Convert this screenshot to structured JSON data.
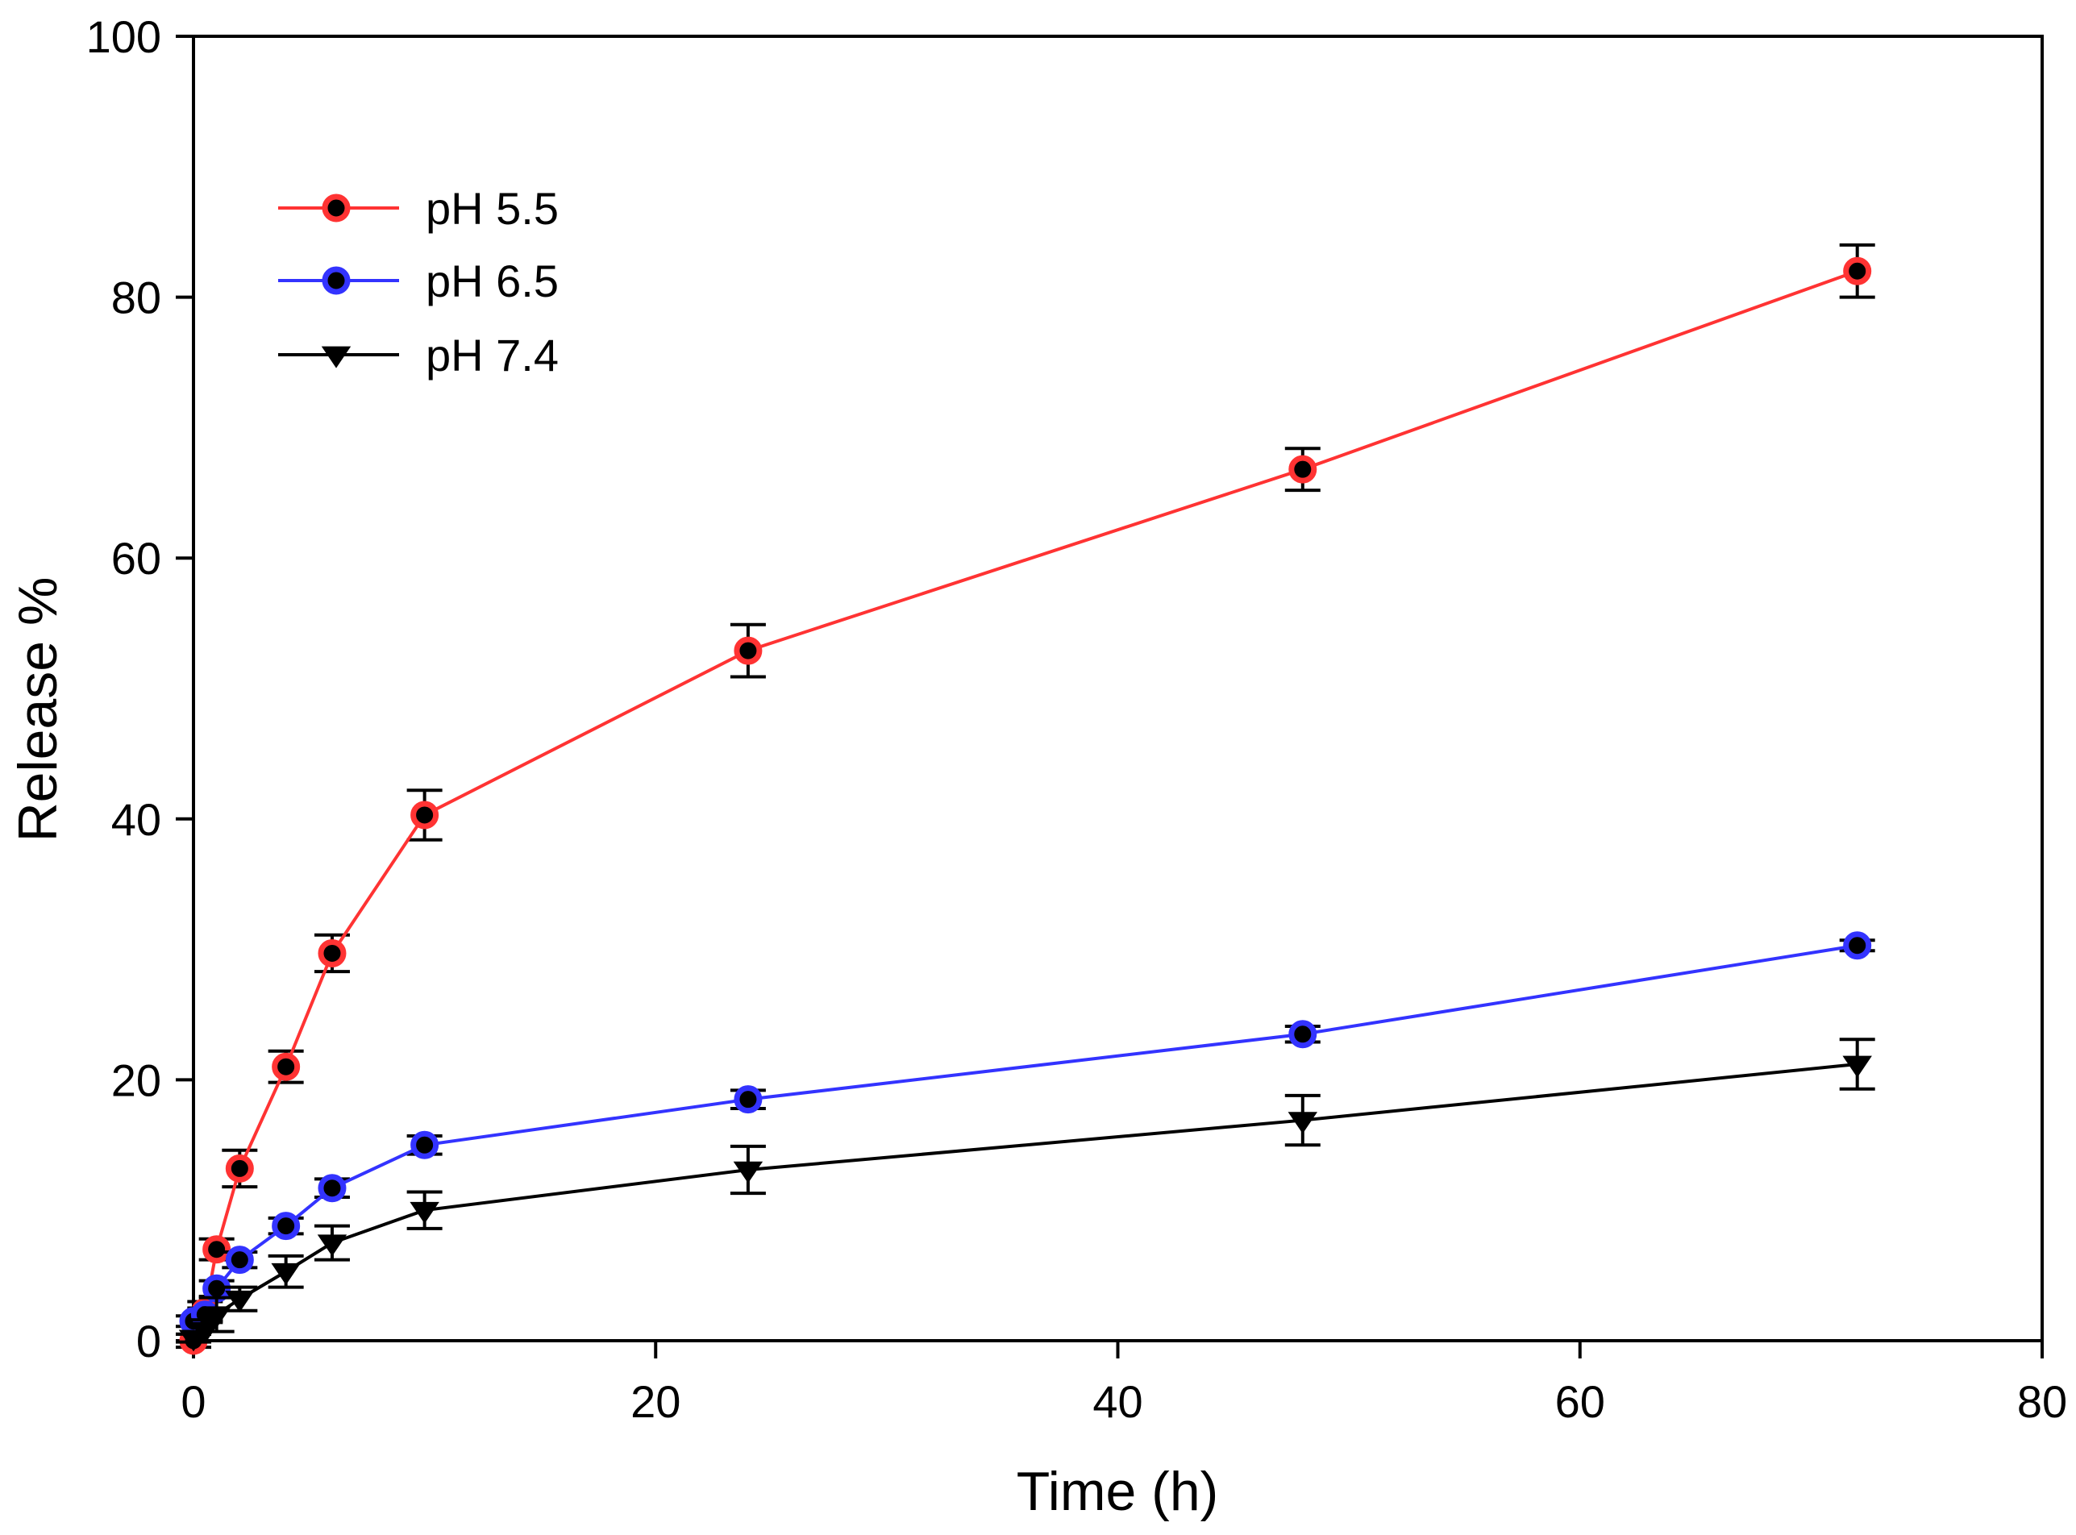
{
  "chart_data": {
    "type": "line",
    "title": "",
    "xlabel": "Time (h)",
    "ylabel": "Release %",
    "xlim": [
      0,
      80
    ],
    "ylim": [
      0,
      100
    ],
    "xticks": [
      0,
      20,
      40,
      60,
      80
    ],
    "yticks": [
      0,
      20,
      40,
      60,
      80,
      100
    ],
    "grid": false,
    "legend": {
      "position": "top-left"
    },
    "series": [
      {
        "name": "pH 5.5",
        "color": "#ff3333",
        "marker": "circle",
        "marker_edge": "#ff3333",
        "marker_fill": "#000000",
        "x": [
          0,
          0.5,
          1,
          2,
          4,
          6,
          10,
          24,
          48,
          72
        ],
        "y": [
          0,
          2.2,
          7.0,
          13.2,
          21.0,
          29.7,
          40.3,
          52.9,
          66.8,
          82.0
        ],
        "err": [
          0.5,
          0.8,
          0.8,
          1.4,
          1.2,
          1.4,
          1.9,
          2.0,
          1.6,
          2.0
        ]
      },
      {
        "name": "pH 6.5",
        "color": "#3333ff",
        "marker": "circle",
        "marker_edge": "#3333ff",
        "marker_fill": "#000000",
        "x": [
          0,
          0.5,
          1,
          2,
          4,
          6,
          10,
          24,
          48,
          72
        ],
        "y": [
          1.5,
          2.0,
          4.0,
          6.2,
          8.8,
          11.7,
          15.0,
          18.5,
          23.5,
          30.3
        ],
        "err": [
          0.4,
          0.5,
          0.6,
          0.6,
          0.6,
          0.7,
          0.7,
          0.7,
          0.6,
          0.4
        ]
      },
      {
        "name": "pH 7.4",
        "color": "#000000",
        "marker": "triangle-down",
        "marker_edge": "#000000",
        "marker_fill": "#000000",
        "x": [
          0,
          0.5,
          1,
          2,
          4,
          6,
          10,
          24,
          48,
          72
        ],
        "y": [
          0.2,
          0.8,
          2.0,
          3.2,
          5.3,
          7.5,
          10.0,
          13.1,
          16.9,
          21.2
        ],
        "err": [
          0.3,
          0.8,
          1.3,
          0.9,
          1.2,
          1.3,
          1.4,
          1.8,
          1.9,
          1.9
        ]
      }
    ]
  }
}
